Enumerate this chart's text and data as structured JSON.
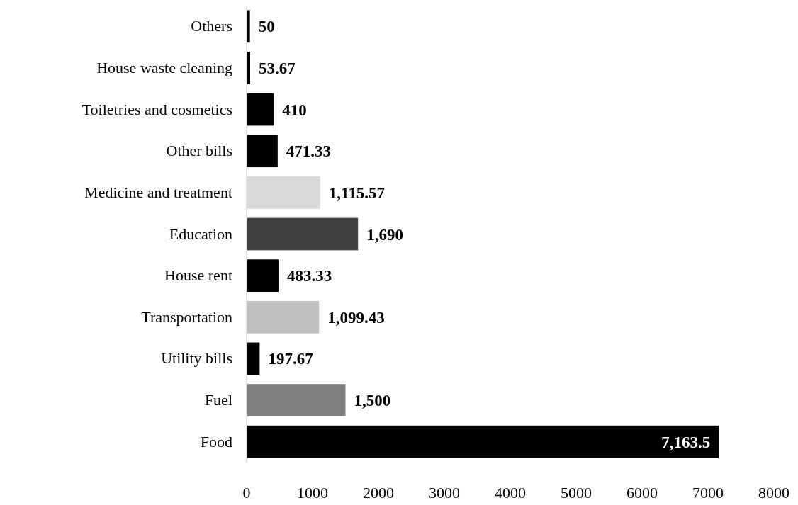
{
  "chart_data": {
    "type": "bar",
    "orientation": "horizontal",
    "categories": [
      "Others",
      "House waste cleaning",
      "Toiletries and cosmetics",
      "Other bills",
      "Medicine and treatment",
      "Education",
      "House rent",
      "Transportation",
      "Utility bills",
      "Fuel",
      "Food"
    ],
    "values": [
      50,
      53.67,
      410,
      471.33,
      1115.57,
      1690,
      483.33,
      1099.43,
      197.67,
      1500,
      7163.5
    ],
    "colors": [
      "#000000",
      "#000000",
      "#000000",
      "#000000",
      "#d9d9d9",
      "#404040",
      "#000000",
      "#bfbfbf",
      "#000000",
      "#7f7f7f",
      "#000000"
    ],
    "value_labels": [
      "50",
      "53.67",
      "410",
      "471.33",
      "1,115.57",
      "1,690",
      "483.33",
      "1,099.43",
      "197.67",
      "1,500",
      "7,163.5"
    ],
    "xlim": [
      0,
      8000
    ],
    "xticks": [
      0,
      1000,
      2000,
      3000,
      4000,
      5000,
      6000,
      7000,
      8000
    ],
    "grid": false
  }
}
